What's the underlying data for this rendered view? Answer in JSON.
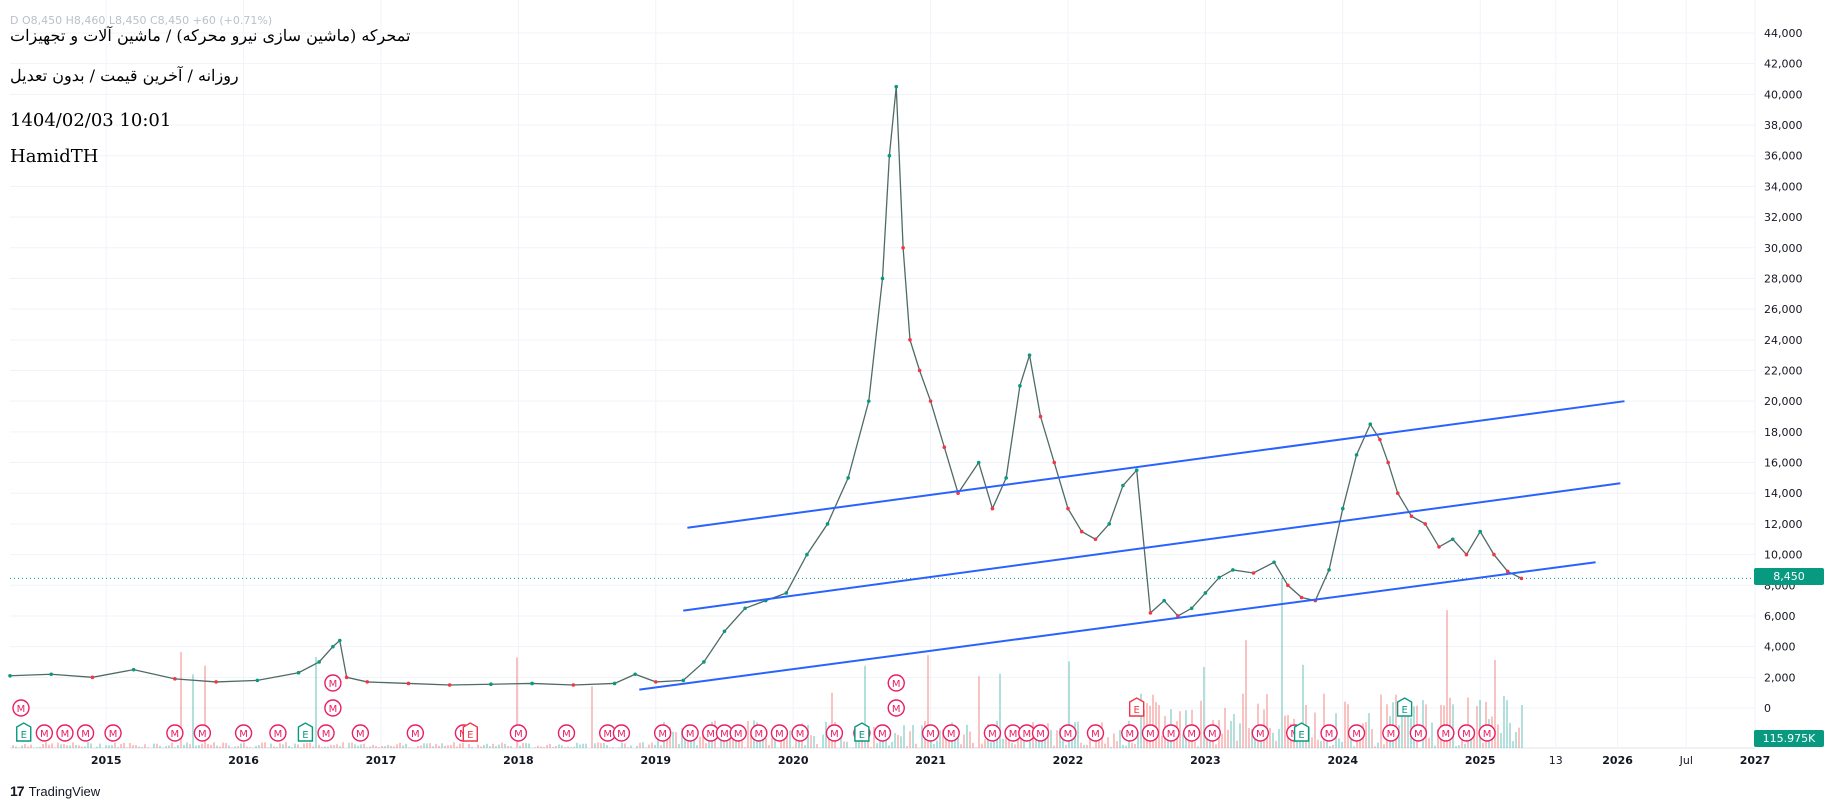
{
  "header": {
    "symbol_line": "تمحرکه (ماشین سازی نیرو محرکه) / ماشین آلات و تجهیزات",
    "ohlc_line": "D  O8,450  H8,460  L8,450  C8,450  +60 (+0.71%)",
    "timeframe_line": "روزانه / آخرین قیمت / بدون تعدیل",
    "datetime": "1404/02/03 10:01",
    "author": "HamidTH"
  },
  "branding": {
    "name": "TradingView",
    "logo_mark": "17"
  },
  "chart_data": {
    "type": "line",
    "title": "",
    "xlabel": "",
    "ylabel": "",
    "ylim": [
      -1500,
      45000
    ],
    "x_ticks": [
      "2015",
      "2016",
      "2017",
      "2018",
      "2019",
      "2020",
      "2021",
      "2022",
      "2023",
      "2024",
      "2025",
      "13",
      "2026",
      "Jul",
      "2027"
    ],
    "y_ticks": [
      "44,000",
      "42,000",
      "40,000",
      "38,000",
      "36,000",
      "34,000",
      "32,000",
      "30,000",
      "28,000",
      "26,000",
      "24,000",
      "22,000",
      "20,000",
      "18,000",
      "16,000",
      "14,000",
      "12,000",
      "10,000",
      "8,000",
      "6,000",
      "4,000",
      "2,000",
      "0"
    ],
    "grid": true,
    "current_price": "8,450",
    "current_volume": "115.975K",
    "colors": {
      "up": "#089981",
      "down": "#f23645",
      "trendline": "#2962ff",
      "event": "#e91e63"
    },
    "series": [
      {
        "x": [
          2014.3,
          2014.6,
          2014.9,
          2015.2,
          2015.5,
          2015.8,
          2016.1,
          2016.4,
          2016.55,
          2016.65,
          2016.7,
          2016.75,
          2016.9,
          2017.2,
          2017.5,
          2017.8,
          2018.1,
          2018.4,
          2018.7,
          2018.85,
          2019.0,
          2019.2,
          2019.35,
          2019.5,
          2019.65,
          2019.8,
          2019.95,
          2020.1,
          2020.25,
          2020.4,
          2020.55,
          2020.65,
          2020.7,
          2020.75,
          2020.8,
          2020.85,
          2020.92,
          2021.0,
          2021.1,
          2021.2,
          2021.35,
          2021.45,
          2021.55,
          2021.65,
          2021.72,
          2021.8,
          2021.9,
          2022.0,
          2022.1,
          2022.2,
          2022.3,
          2022.4,
          2022.5,
          2022.6,
          2022.7,
          2022.8,
          2022.9,
          2023.0,
          2023.1,
          2023.2,
          2023.35,
          2023.5,
          2023.6,
          2023.7,
          2023.8,
          2023.9,
          2024.0,
          2024.1,
          2024.2,
          2024.27,
          2024.33,
          2024.4,
          2024.5,
          2024.6,
          2024.7,
          2024.8,
          2024.9,
          2025.0,
          2025.1,
          2025.2,
          2025.3
        ],
        "y": [
          2100,
          2200,
          2000,
          2500,
          1900,
          1700,
          1800,
          2300,
          3000,
          4000,
          4400,
          2000,
          1700,
          1600,
          1500,
          1550,
          1600,
          1500,
          1600,
          2200,
          1700,
          1800,
          3000,
          5000,
          6500,
          7000,
          7500,
          10000,
          12000,
          15000,
          20000,
          28000,
          36000,
          40500,
          30000,
          24000,
          22000,
          20000,
          17000,
          14000,
          16000,
          13000,
          15000,
          21000,
          23000,
          19000,
          16000,
          13000,
          11500,
          11000,
          12000,
          14500,
          15500,
          6200,
          7000,
          6000,
          6500,
          7500,
          8500,
          9000,
          8800,
          9500,
          8000,
          7200,
          7000,
          9000,
          13000,
          16500,
          18500,
          17500,
          16000,
          14000,
          12500,
          12000,
          10500,
          11000,
          10000,
          11500,
          10000,
          8900,
          8450
        ]
      }
    ],
    "trendlines": [
      {
        "x": [
          2019.23,
          2026.05
        ],
        "y": [
          11750,
          20000
        ]
      },
      {
        "x": [
          2019.2,
          2026.02
        ],
        "y": [
          6350,
          14650
        ]
      },
      {
        "x": [
          2018.88,
          2025.84
        ],
        "y": [
          1200,
          9500
        ]
      }
    ],
    "events": {
      "earnings": [
        2014.4,
        2016.45,
        2017.65,
        2020.5,
        2022.5,
        2023.7,
        2024.45
      ],
      "meetings": [
        2014.55,
        2014.7,
        2014.85,
        2015.05,
        2015.5,
        2015.7,
        2016.0,
        2016.25,
        2016.6,
        2016.85,
        2017.25,
        2017.6,
        2018.0,
        2018.35,
        2018.65,
        2018.75,
        2019.05,
        2019.25,
        2019.4,
        2019.5,
        2019.6,
        2019.75,
        2019.9,
        2020.05,
        2020.3,
        2020.5,
        2020.65,
        2021.0,
        2021.15,
        2021.45,
        2021.6,
        2021.7,
        2021.8,
        2022.0,
        2022.2,
        2022.45,
        2022.6,
        2022.75,
        2022.9,
        2023.05,
        2023.4,
        2023.65,
        2023.9,
        2024.1,
        2024.35,
        2024.55,
        2024.75,
        2024.9,
        2025.05
      ],
      "top_meetings": [
        2016.65,
        2020.75
      ]
    }
  }
}
